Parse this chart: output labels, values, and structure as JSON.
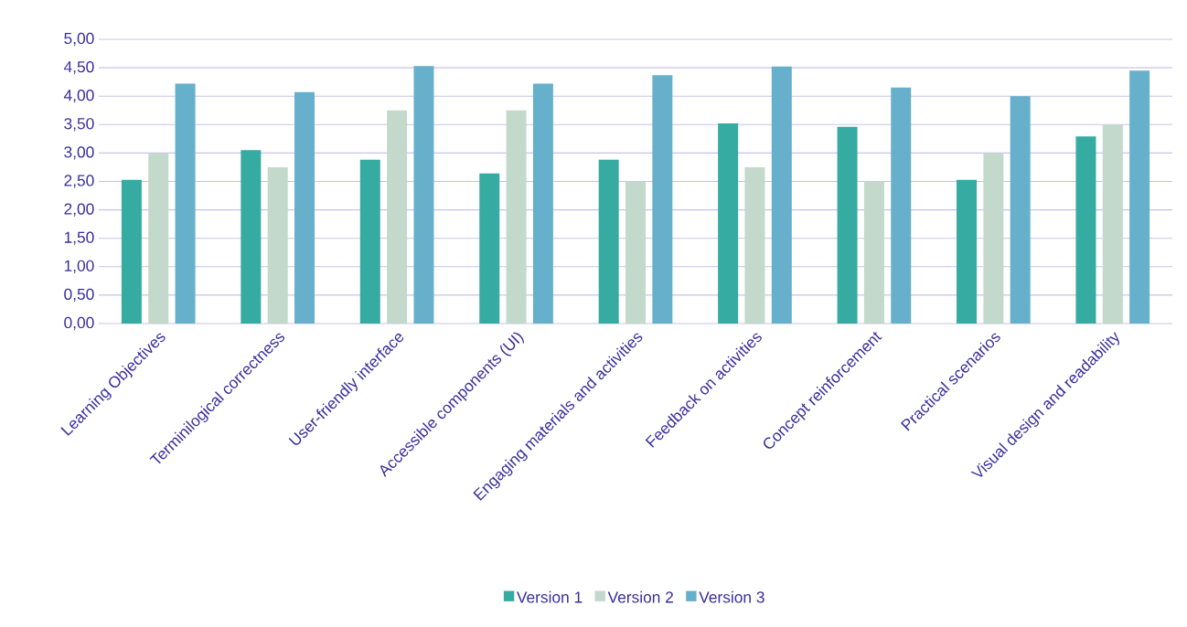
{
  "chart_data": {
    "type": "bar",
    "categories": [
      "Learning Objectives",
      "Terminilogical correctness",
      "User-friendly interface",
      "Accessible components (UI)",
      "Engaging materials and activities",
      "Feedback on activities",
      "Concept reinforcement",
      "Practical scenarios",
      "Visual design and readability"
    ],
    "series": [
      {
        "name": "Version 1",
        "color": "#36aba1",
        "values": [
          2.53,
          3.05,
          2.88,
          2.64,
          2.88,
          3.52,
          3.46,
          2.53,
          3.29
        ]
      },
      {
        "name": "Version 2",
        "color": "#c2d9cb",
        "values": [
          3.0,
          2.75,
          3.75,
          3.75,
          2.5,
          2.75,
          2.5,
          3.0,
          3.5
        ]
      },
      {
        "name": "Version 3",
        "color": "#67b0cb",
        "values": [
          4.22,
          4.07,
          4.53,
          4.22,
          4.37,
          4.52,
          4.15,
          4.0,
          4.45
        ]
      }
    ],
    "ylim": [
      0,
      5
    ],
    "yticks": [
      {
        "value": 0,
        "label": "0,00"
      },
      {
        "value": 0.5,
        "label": "0,50"
      },
      {
        "value": 1,
        "label": "1,00"
      },
      {
        "value": 1.5,
        "label": "1,50"
      },
      {
        "value": 2,
        "label": "2,00"
      },
      {
        "value": 2.5,
        "label": "2,50"
      },
      {
        "value": 3,
        "label": "3,00"
      },
      {
        "value": 3.5,
        "label": "3,50"
      },
      {
        "value": 4,
        "label": "4,00"
      },
      {
        "value": 4.5,
        "label": "4,50"
      },
      {
        "value": 5,
        "label": "5,00"
      }
    ],
    "grid": "y",
    "legend": "bottom"
  }
}
